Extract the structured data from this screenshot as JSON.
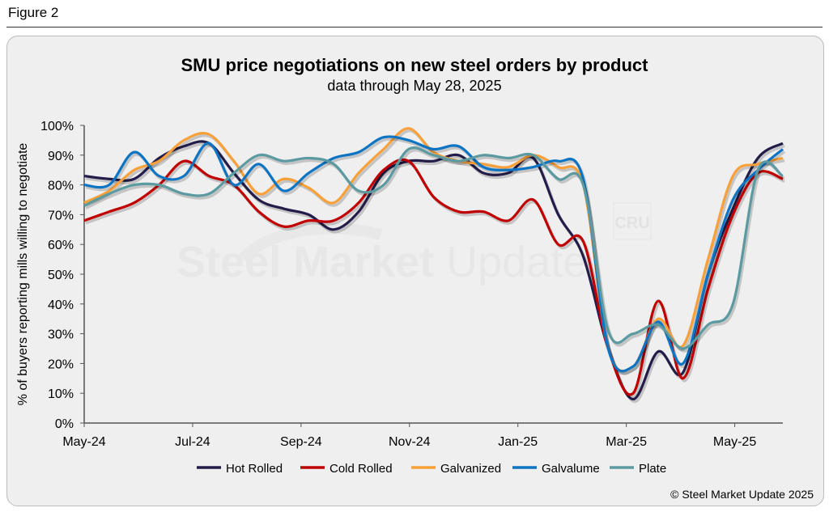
{
  "figure_label": "Figure 2",
  "credit": "© Steel Market Update 2025",
  "watermark": {
    "logo_text": "Steel Market Update",
    "badge_text": "CRU"
  },
  "chart_data": {
    "type": "line",
    "title": "SMU price negotiations on new steel orders by product",
    "subtitle": "data through May 28, 2025",
    "xlabel": "",
    "ylabel": "% of buyers reporting mills willing to negotiate",
    "ylim": [
      0,
      100
    ],
    "yticks": [
      "0%",
      "10%",
      "20%",
      "30%",
      "40%",
      "50%",
      "60%",
      "70%",
      "80%",
      "90%",
      "100%"
    ],
    "xticks": [
      "May-24",
      "Jul-24",
      "Sep-24",
      "Nov-24",
      "Jan-25",
      "Mar-25",
      "May-25"
    ],
    "xlim": [
      "2024-05-01",
      "2025-05-28"
    ],
    "grid": false,
    "legend": "bottom",
    "x": [
      "2024-05-01",
      "2024-05-15",
      "2024-05-29",
      "2024-06-12",
      "2024-06-26",
      "2024-07-10",
      "2024-07-24",
      "2024-08-07",
      "2024-08-21",
      "2024-09-04",
      "2024-09-18",
      "2024-10-02",
      "2024-10-16",
      "2024-10-30",
      "2024-11-13",
      "2024-11-27",
      "2024-12-11",
      "2024-12-25",
      "2025-01-08",
      "2025-01-22",
      "2025-02-05",
      "2025-02-19",
      "2025-03-05",
      "2025-03-19",
      "2025-04-02",
      "2025-04-16",
      "2025-04-30",
      "2025-05-14",
      "2025-05-28"
    ],
    "series": [
      {
        "name": "Hot Rolled",
        "color": "#231d4a",
        "values": [
          83,
          82,
          82,
          89,
          93,
          94,
          84,
          75,
          72,
          70,
          65,
          71,
          84,
          88,
          88,
          90,
          84,
          84,
          89,
          70,
          56,
          25,
          8,
          24,
          17,
          50,
          72,
          89,
          94
        ]
      },
      {
        "name": "Cold Rolled",
        "color": "#c00000",
        "values": [
          68,
          71,
          74,
          80,
          88,
          83,
          80,
          71,
          66,
          68,
          68,
          74,
          85,
          88,
          76,
          71,
          71,
          68,
          75,
          60,
          61,
          25,
          10,
          41,
          15,
          45,
          70,
          84,
          82
        ]
      },
      {
        "name": "Galvanized",
        "color": "#f8a03a",
        "values": [
          74,
          78,
          85,
          88,
          95,
          97,
          88,
          77,
          82,
          79,
          74,
          84,
          92,
          99,
          91,
          88,
          87,
          86,
          90,
          86,
          80,
          25,
          19,
          35,
          26,
          55,
          83,
          87,
          89
        ]
      },
      {
        "name": "Galvalume",
        "color": "#0d74c4",
        "values": [
          80,
          80,
          91,
          83,
          83,
          94,
          80,
          87,
          78,
          84,
          89,
          91,
          96,
          95,
          92,
          93,
          86,
          85,
          86,
          88,
          82,
          25,
          19,
          34,
          20,
          50,
          75,
          85,
          92
        ]
      },
      {
        "name": "Plate",
        "color": "#5b9aa0",
        "values": [
          73,
          77,
          80,
          80,
          77,
          77,
          84,
          90,
          88,
          89,
          87,
          78,
          80,
          92,
          90,
          88,
          90,
          89,
          90,
          82,
          80,
          31,
          30,
          33,
          25,
          33,
          40,
          85,
          83
        ]
      }
    ]
  }
}
